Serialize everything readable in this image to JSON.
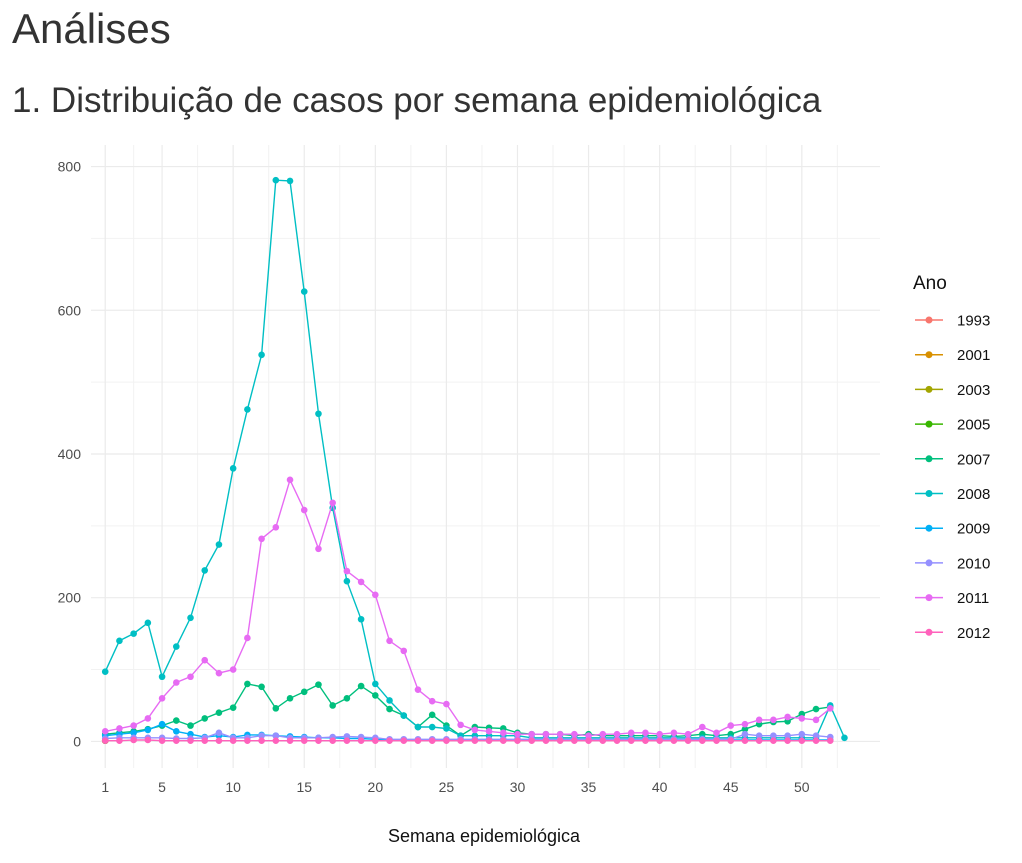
{
  "header": {
    "title": "Análises",
    "section_title": "1. Distribuição de casos por semana epidemiológica"
  },
  "chart_data": {
    "type": "line",
    "title": "",
    "xlabel": "Semana epidemiológica",
    "ylabel": "",
    "xlim": [
      1,
      53
    ],
    "ylim": [
      0,
      800
    ],
    "x_ticks": [
      1,
      5,
      10,
      15,
      20,
      25,
      30,
      35,
      40,
      45,
      50
    ],
    "y_ticks": [
      0,
      200,
      400,
      600,
      800
    ],
    "grid": true,
    "legend_title": "Ano",
    "legend_position": "right",
    "series": [
      {
        "name": "1993",
        "color": "#F8766D",
        "x": [
          1
        ],
        "values": [
          1
        ]
      },
      {
        "name": "2001",
        "color": "#D89000",
        "x": [
          1
        ],
        "values": [
          1
        ]
      },
      {
        "name": "2003",
        "color": "#A3A500",
        "x": [
          1
        ],
        "values": [
          1
        ]
      },
      {
        "name": "2005",
        "color": "#39B600",
        "x": [
          1
        ],
        "values": [
          1
        ]
      },
      {
        "name": "2007",
        "color": "#00BF7D",
        "x": [
          1,
          2,
          3,
          4,
          5,
          6,
          7,
          8,
          9,
          10,
          11,
          12,
          13,
          14,
          15,
          16,
          17,
          18,
          19,
          20,
          21,
          22,
          23,
          24,
          25,
          26,
          27,
          28,
          29,
          30,
          31,
          32,
          33,
          34,
          35,
          36,
          37,
          38,
          39,
          40,
          41,
          42,
          43,
          44,
          45,
          46,
          47,
          48,
          49,
          50,
          51,
          52
        ],
        "values": [
          10,
          12,
          14,
          17,
          22,
          29,
          22,
          32,
          40,
          47,
          80,
          76,
          46,
          60,
          69,
          79,
          50,
          60,
          77,
          64,
          45,
          36,
          20,
          37,
          22,
          8,
          20,
          19,
          18,
          12,
          10,
          10,
          10,
          8,
          10,
          8,
          8,
          8,
          8,
          8,
          7,
          8,
          10,
          8,
          10,
          17,
          24,
          27,
          28,
          38,
          45,
          48
        ]
      },
      {
        "name": "2008",
        "color": "#00BFC4",
        "x": [
          1,
          2,
          3,
          4,
          5,
          6,
          7,
          8,
          9,
          10,
          11,
          12,
          13,
          14,
          15,
          16,
          17,
          18,
          19,
          20,
          21,
          22,
          23,
          24,
          25,
          26,
          27,
          28,
          29,
          30,
          31,
          32,
          33,
          34,
          35,
          36,
          37,
          38,
          39,
          40,
          41,
          42,
          43,
          44,
          45,
          46,
          47,
          48,
          49,
          50,
          51,
          52,
          53
        ],
        "values": [
          97,
          140,
          150,
          165,
          90,
          132,
          172,
          238,
          274,
          380,
          462,
          538,
          781,
          780,
          626,
          456,
          325,
          223,
          170,
          80,
          57,
          36,
          20,
          20,
          18,
          8,
          8,
          8,
          8,
          8,
          5,
          5,
          5,
          5,
          5,
          5,
          5,
          5,
          5,
          5,
          5,
          5,
          5,
          5,
          5,
          5,
          5,
          5,
          5,
          5,
          5,
          50,
          5
        ]
      },
      {
        "name": "2009",
        "color": "#00B0F6",
        "x": [
          1,
          2,
          3,
          4,
          5,
          6,
          7,
          8,
          9,
          10,
          11,
          12,
          13,
          14,
          15,
          16,
          17,
          18,
          19,
          20,
          21,
          22,
          23,
          24,
          25,
          26,
          27,
          28,
          29,
          30,
          31,
          32,
          33,
          34,
          35,
          36,
          37,
          38,
          39,
          40,
          41,
          42,
          43,
          44,
          45,
          46,
          47,
          48,
          49,
          50,
          51,
          52
        ],
        "values": [
          8,
          10,
          12,
          16,
          24,
          14,
          10,
          6,
          8,
          6,
          9,
          9,
          8,
          7,
          6,
          5,
          5,
          4,
          4,
          3,
          2,
          2,
          2,
          2,
          2,
          2,
          2,
          2,
          2,
          2,
          2,
          2,
          2,
          2,
          2,
          2,
          2,
          2,
          2,
          2,
          2,
          2,
          2,
          2,
          2,
          2,
          2,
          2,
          2,
          2,
          2,
          2
        ]
      },
      {
        "name": "2010",
        "color": "#9590FF",
        "x": [
          1,
          2,
          3,
          4,
          5,
          6,
          7,
          8,
          9,
          10,
          11,
          12,
          13,
          14,
          15,
          16,
          17,
          18,
          19,
          20,
          21,
          22,
          23,
          24,
          25,
          26,
          27,
          28,
          29,
          30,
          31,
          32,
          33,
          34,
          35,
          36,
          37,
          38,
          39,
          40,
          41,
          42,
          43,
          44,
          45,
          46,
          47,
          48,
          49,
          50,
          51,
          52
        ],
        "values": [
          4,
          5,
          5,
          5,
          5,
          4,
          4,
          5,
          12,
          5,
          5,
          8,
          8,
          5,
          5,
          5,
          6,
          7,
          6,
          5,
          3,
          3,
          3,
          3,
          3,
          3,
          3,
          3,
          3,
          3,
          3,
          3,
          3,
          3,
          3,
          3,
          3,
          3,
          3,
          3,
          3,
          3,
          3,
          3,
          3,
          10,
          8,
          8,
          8,
          10,
          8,
          6
        ]
      },
      {
        "name": "2011",
        "color": "#E76BF3",
        "x": [
          1,
          2,
          3,
          4,
          5,
          6,
          7,
          8,
          9,
          10,
          11,
          12,
          13,
          14,
          15,
          16,
          17,
          18,
          19,
          20,
          21,
          22,
          23,
          24,
          25,
          26,
          27,
          28,
          29,
          30,
          31,
          32,
          33,
          34,
          35,
          36,
          37,
          38,
          39,
          40,
          41,
          42,
          43,
          44,
          45,
          46,
          47,
          48,
          49,
          50,
          51,
          52
        ],
        "values": [
          14,
          18,
          22,
          32,
          60,
          82,
          90,
          113,
          95,
          100,
          144,
          282,
          298,
          364,
          322,
          268,
          332,
          237,
          222,
          204,
          140,
          126,
          72,
          56,
          52,
          23,
          16,
          14,
          12,
          10,
          10,
          10,
          10,
          10,
          8,
          10,
          10,
          12,
          12,
          10,
          12,
          10,
          20,
          12,
          22,
          24,
          30,
          30,
          34,
          32,
          30,
          46
        ]
      },
      {
        "name": "2012",
        "color": "#FF62BC",
        "x": [
          1,
          2,
          3,
          4,
          5,
          6,
          7,
          8,
          9,
          10,
          11,
          12,
          13,
          14,
          15,
          16,
          17,
          18,
          19,
          20,
          21,
          22,
          23,
          24,
          25,
          26,
          27,
          28,
          29,
          30,
          31,
          32,
          33,
          34,
          35,
          36,
          37,
          38,
          39,
          40,
          41,
          42,
          43,
          44,
          45,
          46,
          47,
          48,
          49,
          50,
          51,
          52
        ],
        "values": [
          1,
          1,
          2,
          2,
          1,
          1,
          1,
          1,
          1,
          1,
          1,
          1,
          1,
          1,
          1,
          1,
          1,
          1,
          1,
          1,
          1,
          1,
          1,
          1,
          1,
          1,
          1,
          1,
          1,
          1,
          1,
          1,
          1,
          1,
          1,
          1,
          1,
          1,
          1,
          1,
          1,
          1,
          1,
          1,
          1,
          1,
          1,
          1,
          1,
          1,
          1,
          1
        ]
      }
    ]
  }
}
